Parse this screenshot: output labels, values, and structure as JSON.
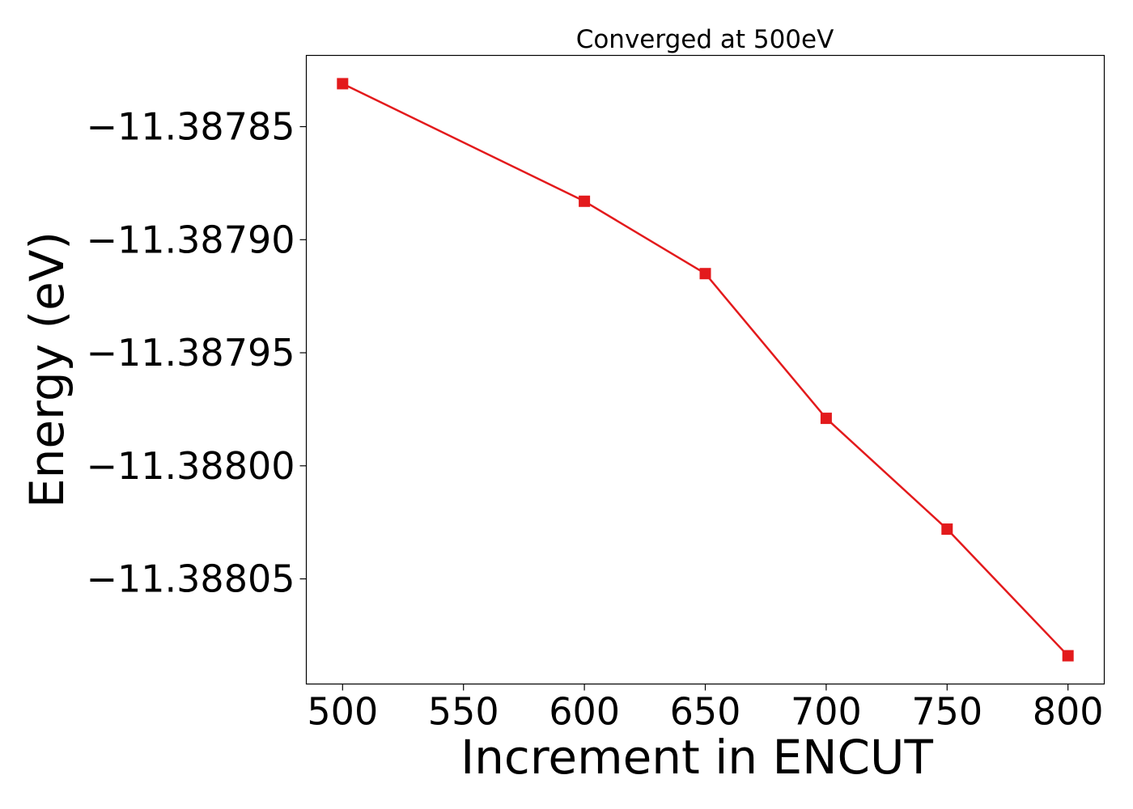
{
  "chart_data": {
    "type": "line",
    "title": "Converged at 500eV",
    "xlabel": "Increment in ENCUT",
    "ylabel": "Energy (eV)",
    "x": [
      500,
      600,
      650,
      700,
      750,
      800
    ],
    "series": [
      {
        "values": [
          -11.387831,
          -11.387883,
          -11.387915,
          -11.387979,
          -11.388028,
          -11.388084
        ],
        "color": "#e31a1c",
        "marker": "square"
      }
    ],
    "xticks": [
      500,
      550,
      600,
      650,
      700,
      750,
      800
    ],
    "xtick_labels": [
      "500",
      "550",
      "600",
      "650",
      "700",
      "750",
      "800"
    ],
    "yticks": [
      -11.38785,
      -11.3879,
      -11.38795,
      -11.388,
      -11.38805
    ],
    "ytick_labels": [
      "−11.38785",
      "−11.38790",
      "−11.38795",
      "−11.38800",
      "−11.38805"
    ],
    "xlim": [
      485,
      815
    ],
    "ylim": [
      -11.3880965,
      -11.3878185
    ],
    "grid": false,
    "legend": "none"
  }
}
